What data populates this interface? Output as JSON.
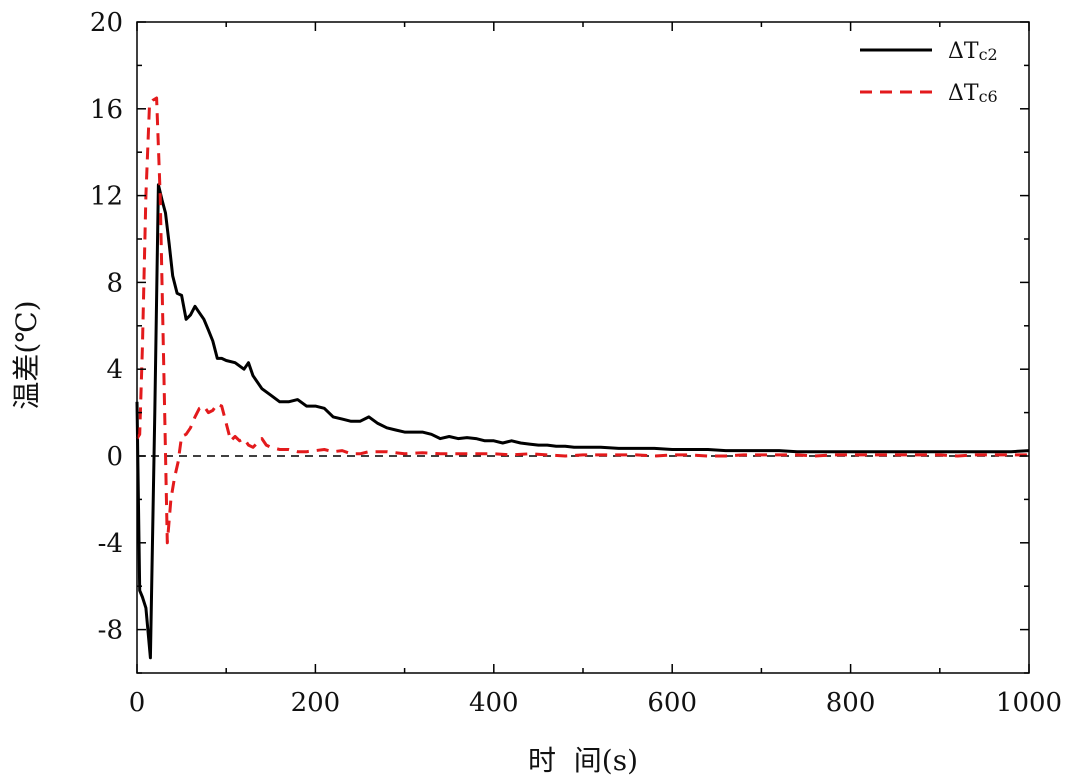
{
  "chart_data": {
    "type": "line",
    "xlabel": "时  间(s)",
    "ylabel": "温差(℃)",
    "xlim": [
      0,
      1000
    ],
    "ylim": [
      -10,
      20
    ],
    "x_ticks": [
      0,
      200,
      400,
      600,
      800,
      1000
    ],
    "x_tick_labels": [
      "0",
      "200",
      "400",
      "600",
      "800",
      "1000"
    ],
    "y_ticks": [
      -8,
      -4,
      0,
      4,
      8,
      12,
      16,
      20
    ],
    "y_tick_labels": [
      "-8",
      "-4",
      "0",
      "4",
      "8",
      "12",
      "16",
      "20"
    ],
    "grid": false,
    "legend_position": "top-right",
    "reference_line": {
      "y": 0,
      "style": "dashed",
      "color": "#000000"
    },
    "series": [
      {
        "name": "ΔTc2",
        "legend_main": "ΔT",
        "legend_sub": "c2",
        "color": "#000000",
        "style": "solid",
        "x": [
          0,
          3,
          6,
          10,
          15,
          20,
          24,
          28,
          32,
          36,
          40,
          45,
          50,
          55,
          60,
          65,
          70,
          75,
          80,
          85,
          90,
          95,
          100,
          110,
          120,
          125,
          130,
          140,
          150,
          160,
          170,
          180,
          190,
          200,
          210,
          220,
          230,
          240,
          250,
          260,
          270,
          280,
          290,
          300,
          310,
          320,
          330,
          340,
          350,
          360,
          370,
          380,
          390,
          400,
          410,
          420,
          430,
          440,
          450,
          460,
          470,
          480,
          490,
          500,
          520,
          540,
          560,
          580,
          600,
          620,
          640,
          660,
          680,
          700,
          720,
          740,
          760,
          780,
          800,
          820,
          840,
          860,
          880,
          900,
          920,
          940,
          960,
          980,
          1000
        ],
        "y": [
          2.5,
          -6.2,
          -6.5,
          -7.0,
          -9.3,
          2.0,
          12.5,
          11.8,
          11.2,
          9.8,
          8.3,
          7.5,
          7.4,
          6.3,
          6.5,
          6.9,
          6.6,
          6.3,
          5.8,
          5.3,
          4.5,
          4.5,
          4.4,
          4.3,
          4.0,
          4.3,
          3.7,
          3.1,
          2.8,
          2.5,
          2.5,
          2.6,
          2.3,
          2.3,
          2.2,
          1.8,
          1.7,
          1.6,
          1.6,
          1.8,
          1.5,
          1.3,
          1.2,
          1.1,
          1.1,
          1.1,
          1.0,
          0.8,
          0.9,
          0.8,
          0.85,
          0.8,
          0.7,
          0.7,
          0.6,
          0.7,
          0.6,
          0.55,
          0.5,
          0.5,
          0.45,
          0.45,
          0.4,
          0.4,
          0.4,
          0.35,
          0.35,
          0.35,
          0.3,
          0.3,
          0.3,
          0.25,
          0.25,
          0.25,
          0.25,
          0.2,
          0.2,
          0.2,
          0.2,
          0.2,
          0.2,
          0.2,
          0.2,
          0.2,
          0.2,
          0.2,
          0.2,
          0.2,
          0.25
        ]
      },
      {
        "name": "ΔTc6",
        "legend_main": "ΔT",
        "legend_sub": "c6",
        "color": "#e31a1c",
        "style": "dashed",
        "x": [
          0,
          3,
          6,
          10,
          14,
          18,
          22,
          26,
          30,
          34,
          38,
          42,
          46,
          50,
          55,
          60,
          65,
          70,
          75,
          80,
          85,
          90,
          95,
          100,
          105,
          110,
          115,
          120,
          125,
          130,
          135,
          140,
          145,
          150,
          160,
          170,
          180,
          190,
          200,
          210,
          220,
          230,
          240,
          250,
          260,
          280,
          300,
          320,
          340,
          360,
          380,
          400,
          420,
          440,
          460,
          480,
          500,
          520,
          540,
          560,
          580,
          600,
          620,
          640,
          660,
          680,
          700,
          720,
          740,
          760,
          780,
          800,
          820,
          840,
          860,
          880,
          900,
          920,
          940,
          960,
          980,
          1000
        ],
        "y": [
          0.8,
          1.0,
          5.0,
          12.0,
          16.2,
          16.4,
          16.5,
          12.0,
          4.0,
          -4.0,
          -2.0,
          -1.0,
          -0.3,
          0.9,
          1.0,
          1.3,
          1.8,
          2.2,
          2.3,
          2.0,
          2.1,
          2.4,
          2.3,
          1.5,
          0.7,
          0.9,
          0.7,
          0.8,
          0.5,
          0.4,
          0.6,
          0.8,
          0.5,
          0.4,
          0.3,
          0.3,
          0.2,
          0.2,
          0.25,
          0.3,
          0.2,
          0.25,
          0.1,
          0.1,
          0.2,
          0.2,
          0.1,
          0.15,
          0.1,
          0.1,
          0.1,
          0.1,
          0.05,
          0.1,
          0.05,
          0.0,
          0.05,
          0.05,
          0.05,
          0.05,
          0.0,
          0.05,
          0.05,
          0.0,
          0.0,
          0.05,
          0.05,
          0.05,
          0.05,
          0.0,
          0.05,
          0.05,
          0.05,
          0.05,
          0.05,
          0.05,
          0.05,
          0.0,
          0.05,
          0.05,
          0.05,
          0.05
        ]
      }
    ]
  }
}
